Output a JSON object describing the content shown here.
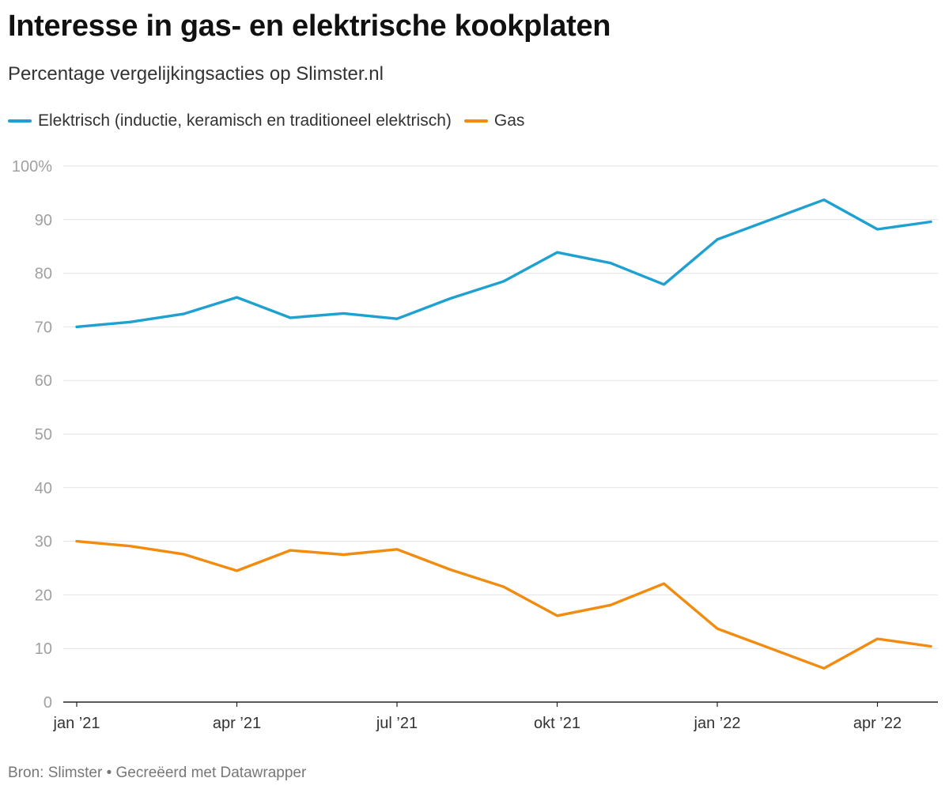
{
  "header": {
    "title": "Interesse in gas- en elektrische kookplaten",
    "subtitle": "Percentage vergelijkingsacties op Slimster.nl"
  },
  "footer": {
    "text": "Bron: Slimster • Gecreëerd met Datawrapper"
  },
  "chart_data": {
    "type": "line",
    "title": "Interesse in gas- en elektrische kookplaten",
    "subtitle": "Percentage vergelijkingsacties op Slimster.nl",
    "legend_position": "top-left",
    "grid": true,
    "ylim": [
      0,
      100
    ],
    "y_ticks": [
      "0",
      "10",
      "20",
      "30",
      "40",
      "50",
      "60",
      "70",
      "80",
      "90",
      "100%"
    ],
    "x_ticks": [
      {
        "label": "jan ’21",
        "date": "2021-01"
      },
      {
        "label": "apr ’21",
        "date": "2021-04"
      },
      {
        "label": "jul ’21",
        "date": "2021-07"
      },
      {
        "label": "okt ’21",
        "date": "2021-10"
      },
      {
        "label": "jan ’22",
        "date": "2022-01"
      },
      {
        "label": "apr ’22",
        "date": "2022-04"
      }
    ],
    "x": [
      "2021-01",
      "2021-02",
      "2021-03",
      "2021-04",
      "2021-05",
      "2021-06",
      "2021-07",
      "2021-08",
      "2021-09",
      "2021-10",
      "2021-11",
      "2021-12",
      "2022-01",
      "2022-02",
      "2022-03",
      "2022-04",
      "2022-05"
    ],
    "series": [
      {
        "name": "Elektrisch (inductie, keramisch en traditioneel elektrisch)",
        "color": "#1ea1d1",
        "values": [
          70.0,
          70.9,
          72.4,
          75.5,
          71.7,
          72.5,
          71.5,
          75.3,
          78.5,
          83.9,
          81.9,
          77.9,
          86.3,
          90.0,
          93.7,
          88.2,
          89.6
        ]
      },
      {
        "name": "Gas",
        "color": "#f28c0f",
        "values": [
          30.0,
          29.1,
          27.6,
          24.5,
          28.3,
          27.5,
          28.5,
          24.7,
          21.5,
          16.1,
          18.1,
          22.1,
          13.7,
          10.0,
          6.3,
          11.8,
          10.4
        ]
      }
    ]
  }
}
